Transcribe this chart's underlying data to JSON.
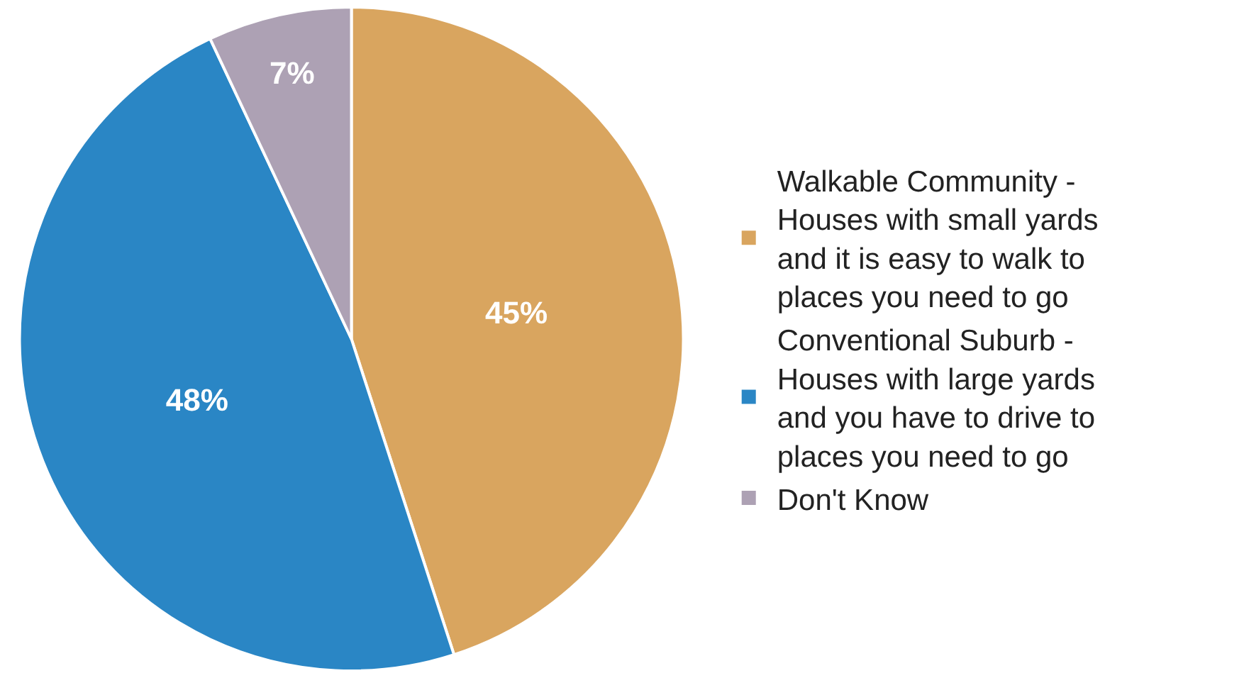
{
  "chart_data": {
    "type": "pie",
    "categories": [
      "Walkable Community - Houses with small yards and it is easy to walk to places you need to go",
      "Conventional Suburb - Houses with large yards and you have to drive to places you need to go",
      "Don't Know"
    ],
    "values": [
      45,
      48,
      7
    ],
    "value_labels": [
      "45%",
      "48%",
      "7%"
    ],
    "colors": [
      "#d9a55f",
      "#2a86c5",
      "#ada1b4"
    ],
    "legend": "right"
  }
}
